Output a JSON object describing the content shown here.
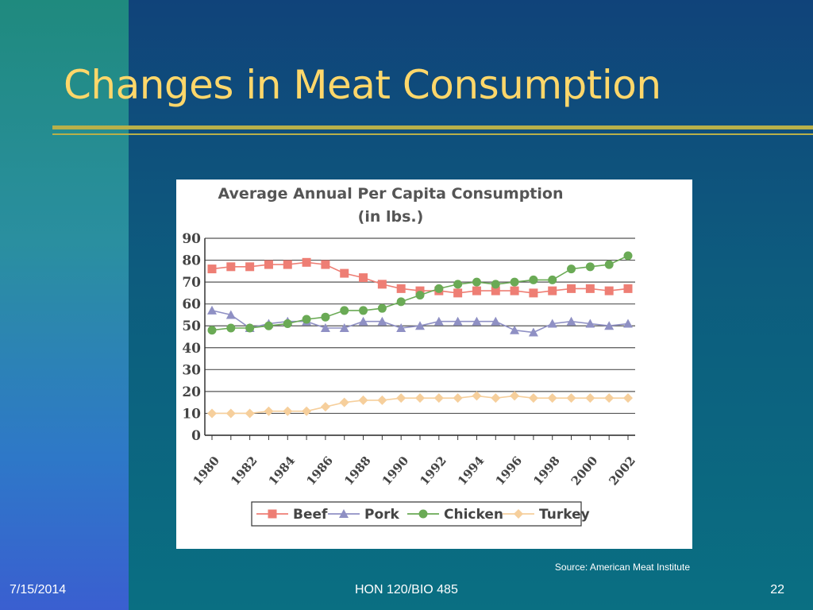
{
  "slide": {
    "title": "Changes in Meat Consumption",
    "source": "Source: American Meat Institute",
    "footer_date": "7/15/2014",
    "footer_course": "HON 120/BIO 485",
    "footer_page": "22"
  },
  "colors": {
    "title": "#ffd76a",
    "rule": "#b8b04a",
    "beef": "#ee7e74",
    "pork": "#8f90c4",
    "chicken": "#6aaa55",
    "turkey": "#f6cf9c"
  },
  "chart_data": {
    "type": "line",
    "title": "Average Annual Per Capita Consumption",
    "subtitle": "(in lbs.)",
    "xlabel": "",
    "ylabel": "",
    "ylim": [
      0,
      90
    ],
    "yticks": [
      0,
      10,
      20,
      30,
      40,
      50,
      60,
      70,
      80,
      90
    ],
    "grid": true,
    "legend_position": "bottom",
    "x": [
      1980,
      1981,
      1982,
      1983,
      1984,
      1985,
      1986,
      1987,
      1988,
      1989,
      1990,
      1991,
      1992,
      1993,
      1994,
      1995,
      1996,
      1997,
      1998,
      1999,
      2000,
      2001,
      2002
    ],
    "xtick_labels": [
      "1980",
      "1982",
      "1984",
      "1986",
      "1988",
      "1990",
      "1992",
      "1994",
      "1996",
      "1998",
      "2000",
      "2002"
    ],
    "series": [
      {
        "name": "Beef",
        "marker": "square",
        "values": [
          76,
          77,
          77,
          78,
          78,
          79,
          78,
          74,
          72,
          69,
          67,
          66,
          66,
          65,
          66,
          66,
          66,
          65,
          66,
          67,
          67,
          66,
          67
        ]
      },
      {
        "name": "Pork",
        "marker": "triangle",
        "values": [
          57,
          55,
          49,
          51,
          52,
          52,
          49,
          49,
          52,
          52,
          49,
          50,
          52,
          52,
          52,
          52,
          48,
          47,
          51,
          52,
          51,
          50,
          51
        ]
      },
      {
        "name": "Chicken",
        "marker": "circle",
        "values": [
          48,
          49,
          49,
          50,
          51,
          53,
          54,
          57,
          57,
          58,
          61,
          64,
          67,
          69,
          70,
          69,
          70,
          71,
          71,
          76,
          77,
          78,
          82
        ]
      },
      {
        "name": "Turkey",
        "marker": "diamond",
        "values": [
          10,
          10,
          10,
          11,
          11,
          11,
          13,
          15,
          16,
          16,
          17,
          17,
          17,
          17,
          18,
          17,
          18,
          17,
          17,
          17,
          17,
          17,
          17
        ]
      }
    ]
  }
}
